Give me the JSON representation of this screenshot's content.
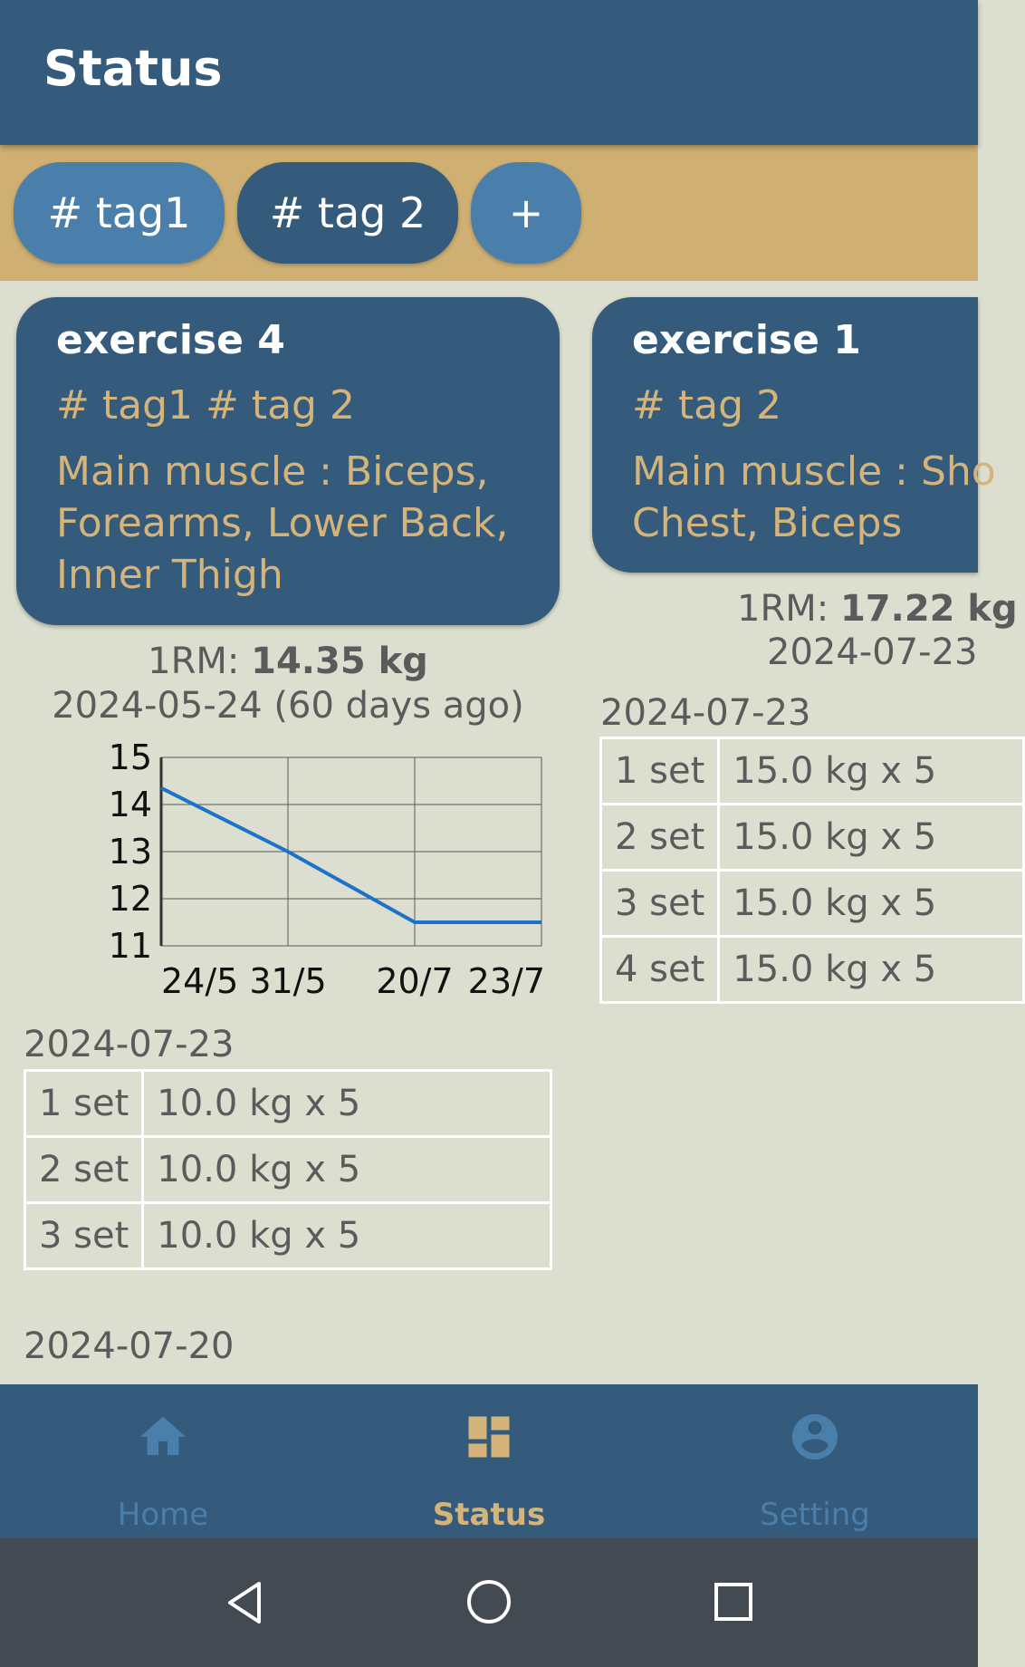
{
  "app": {
    "title": "Status"
  },
  "tags": [
    {
      "label": "# tag1"
    },
    {
      "label": "# tag 2"
    },
    {
      "label": "+"
    }
  ],
  "cards": [
    {
      "name": "exercise 4",
      "tags": "# tag1 # tag 2",
      "muscle": "Main muscle : Biceps, Forearms, Lower Back, Inner Thigh",
      "rm_label": "1RM: ",
      "rm_value": "14.35 kg",
      "rm_date": "2024-05-24 (60 days ago)",
      "sessions": [
        {
          "date": "2024-07-23",
          "sets": [
            {
              "set": "1 set",
              "value": "10.0 kg x 5"
            },
            {
              "set": "2 set",
              "value": "10.0 kg x 5"
            },
            {
              "set": "3 set",
              "value": "10.0 kg x 5"
            }
          ]
        },
        {
          "date": "2024-07-20",
          "sets": []
        }
      ]
    },
    {
      "name": "exercise 1",
      "tags": "# tag 2",
      "muscle_line1": "Main muscle : Sho",
      "muscle_line2": "Chest, Biceps",
      "rm_label": "1RM: ",
      "rm_value": "17.22 kg",
      "rm_date": "2024-07-23",
      "sessions": [
        {
          "date": "2024-07-23",
          "sets": [
            {
              "set": "1 set",
              "value": "15.0 kg x 5"
            },
            {
              "set": "2 set",
              "value": "15.0 kg x 5"
            },
            {
              "set": "3 set",
              "value": "15.0 kg x 5"
            },
            {
              "set": "4 set",
              "value": "15.0 kg x 5"
            }
          ]
        }
      ]
    }
  ],
  "chart_data": {
    "type": "line",
    "title": "",
    "xlabel": "",
    "ylabel": "",
    "categories": [
      "24/5",
      "31/5",
      "20/7",
      "23/7"
    ],
    "series": [
      {
        "values": [
          14.35,
          13.0,
          11.5,
          11.5
        ]
      }
    ],
    "ylim": [
      11,
      15
    ],
    "y_ticks": [
      "15",
      "14",
      "13",
      "12",
      "11"
    ],
    "grid": true,
    "line_color": "#1a73c8"
  },
  "nav": {
    "items": [
      {
        "label": "Home",
        "icon": "home-icon",
        "active": false
      },
      {
        "label": "Status",
        "icon": "dashboard-icon",
        "active": true
      },
      {
        "label": "Setting",
        "icon": "account-circle-icon",
        "active": false
      }
    ],
    "active_color": "#d4b47a",
    "inactive_color": "#4a7fab"
  }
}
